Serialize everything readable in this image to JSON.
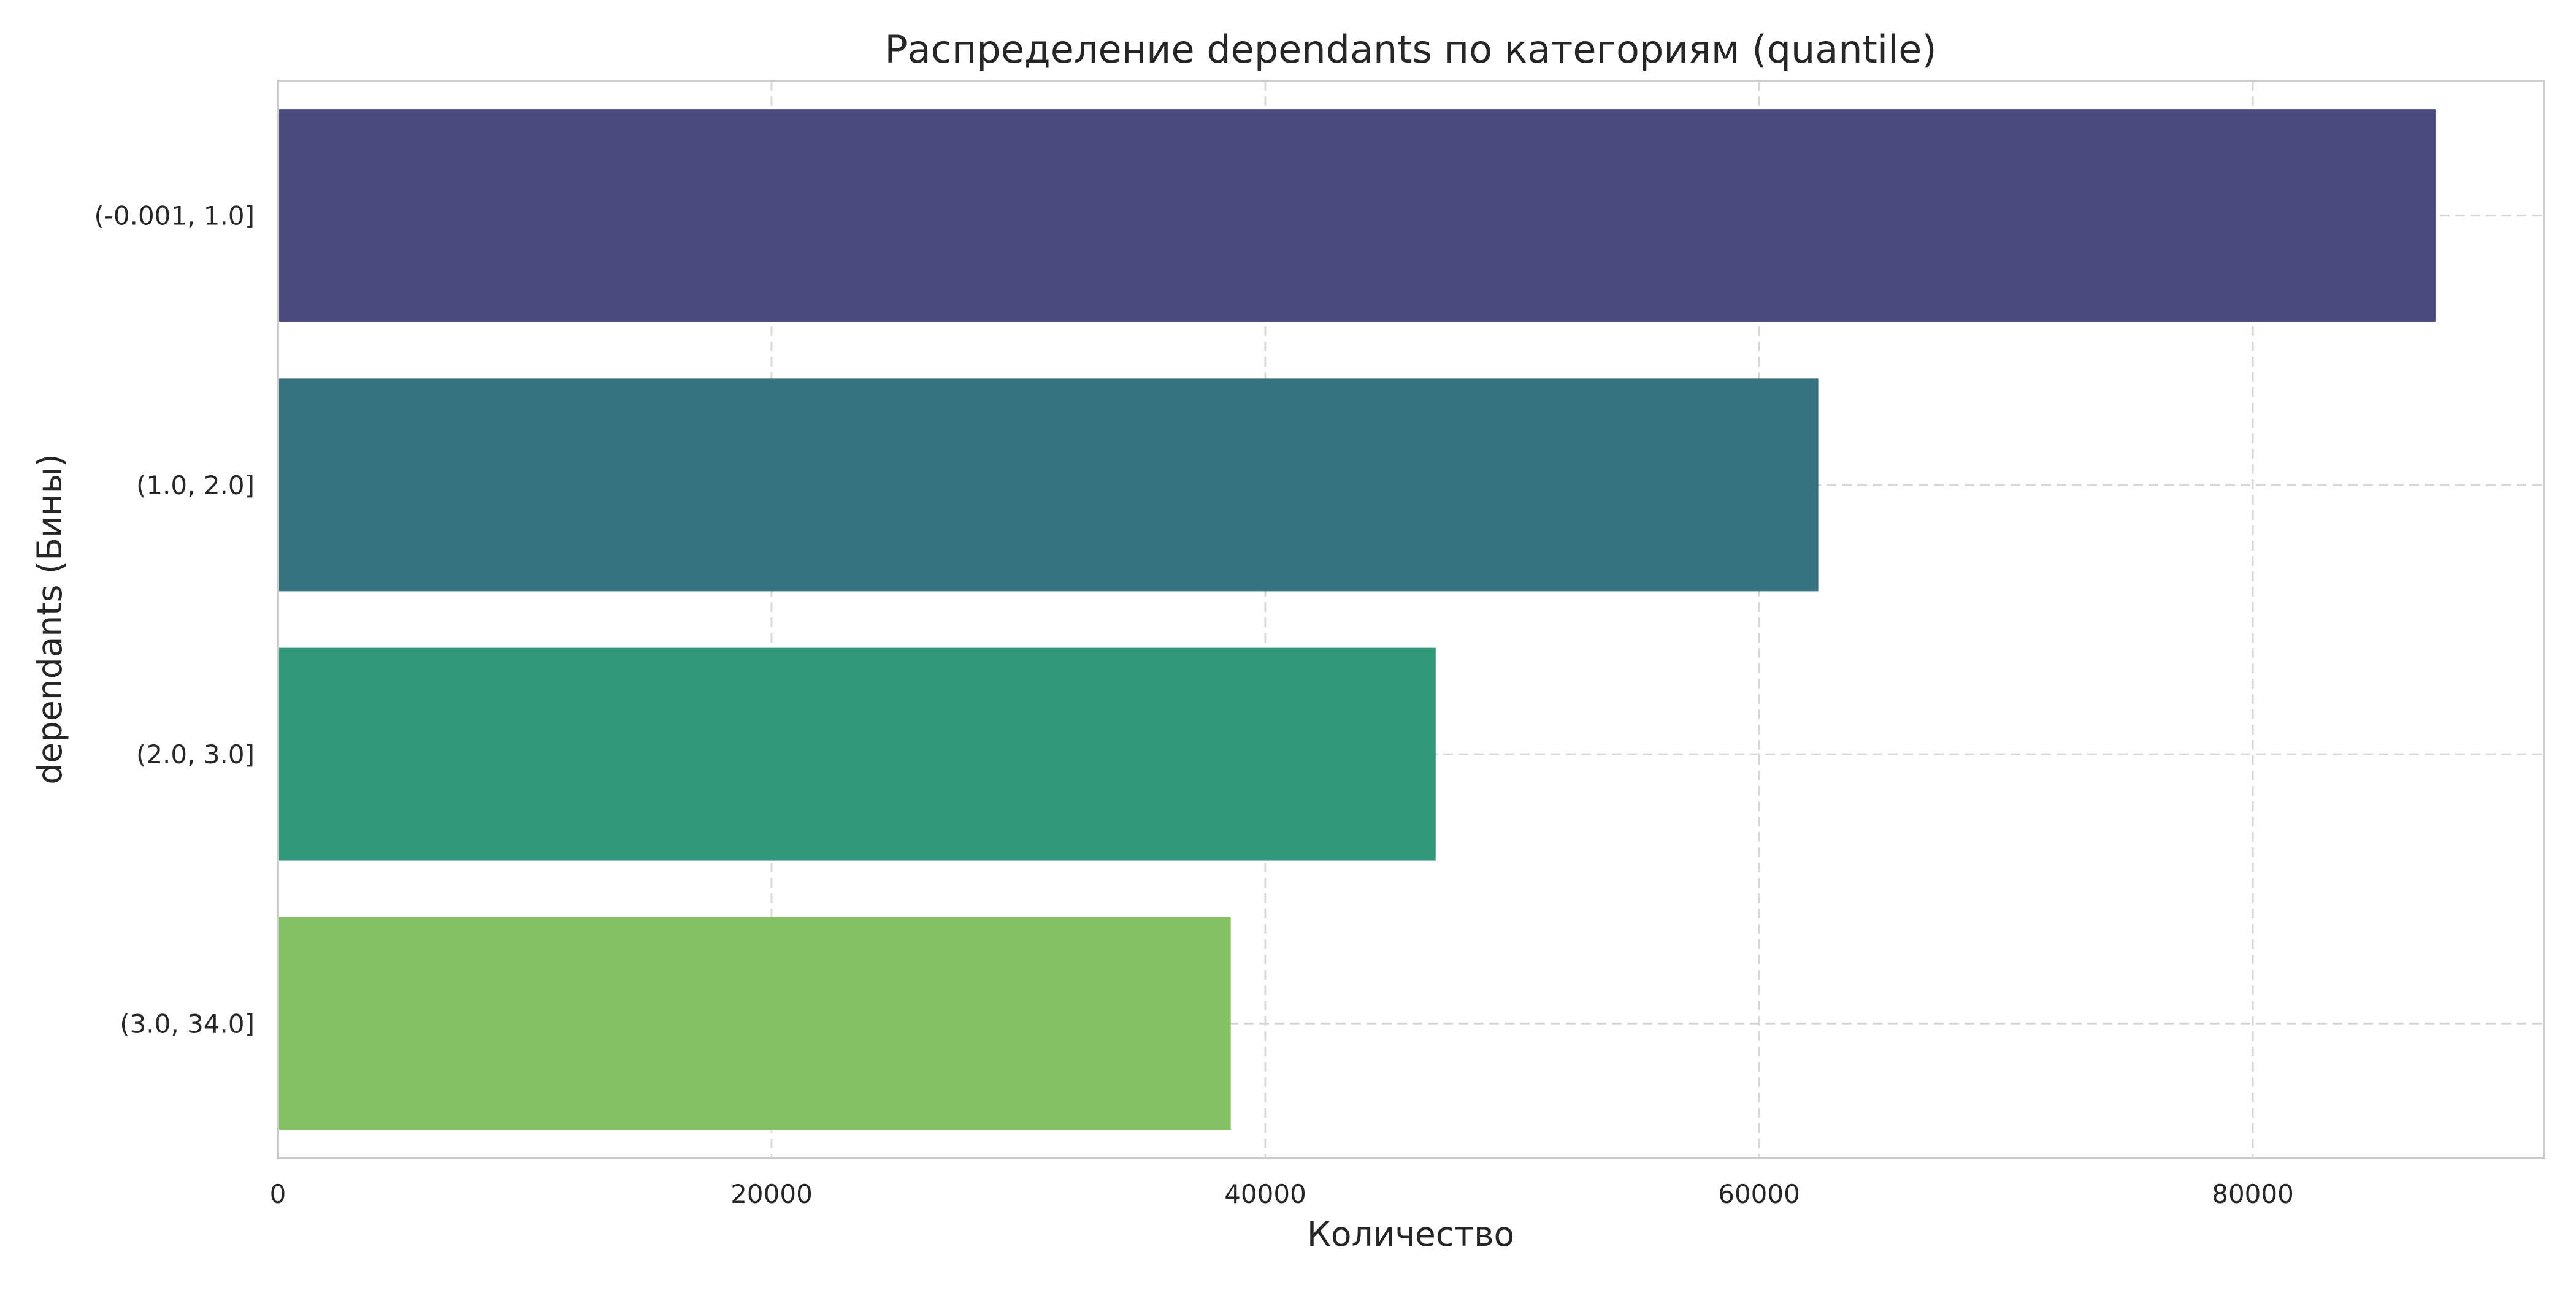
{
  "chart_data": {
    "type": "bar",
    "orientation": "horizontal",
    "title": "Распределение dependants по категориям (quantile)",
    "xlabel": "Количество",
    "ylabel": "dependants (Бины)",
    "categories": [
      "(-0.001, 1.0]",
      "(1.0, 2.0]",
      "(2.0, 3.0]",
      "(3.0, 34.0]"
    ],
    "values": [
      87400,
      62400,
      46900,
      38600
    ],
    "colors": [
      "#4a4c7e",
      "#367281",
      "#33977b",
      "#82c263"
    ],
    "xlim": [
      0,
      91800
    ],
    "xticks": [
      0,
      20000,
      40000,
      60000,
      80000
    ],
    "xtick_labels": [
      "0",
      "20000",
      "40000",
      "60000",
      "80000"
    ],
    "grid": true,
    "grid_style": "dashed"
  }
}
